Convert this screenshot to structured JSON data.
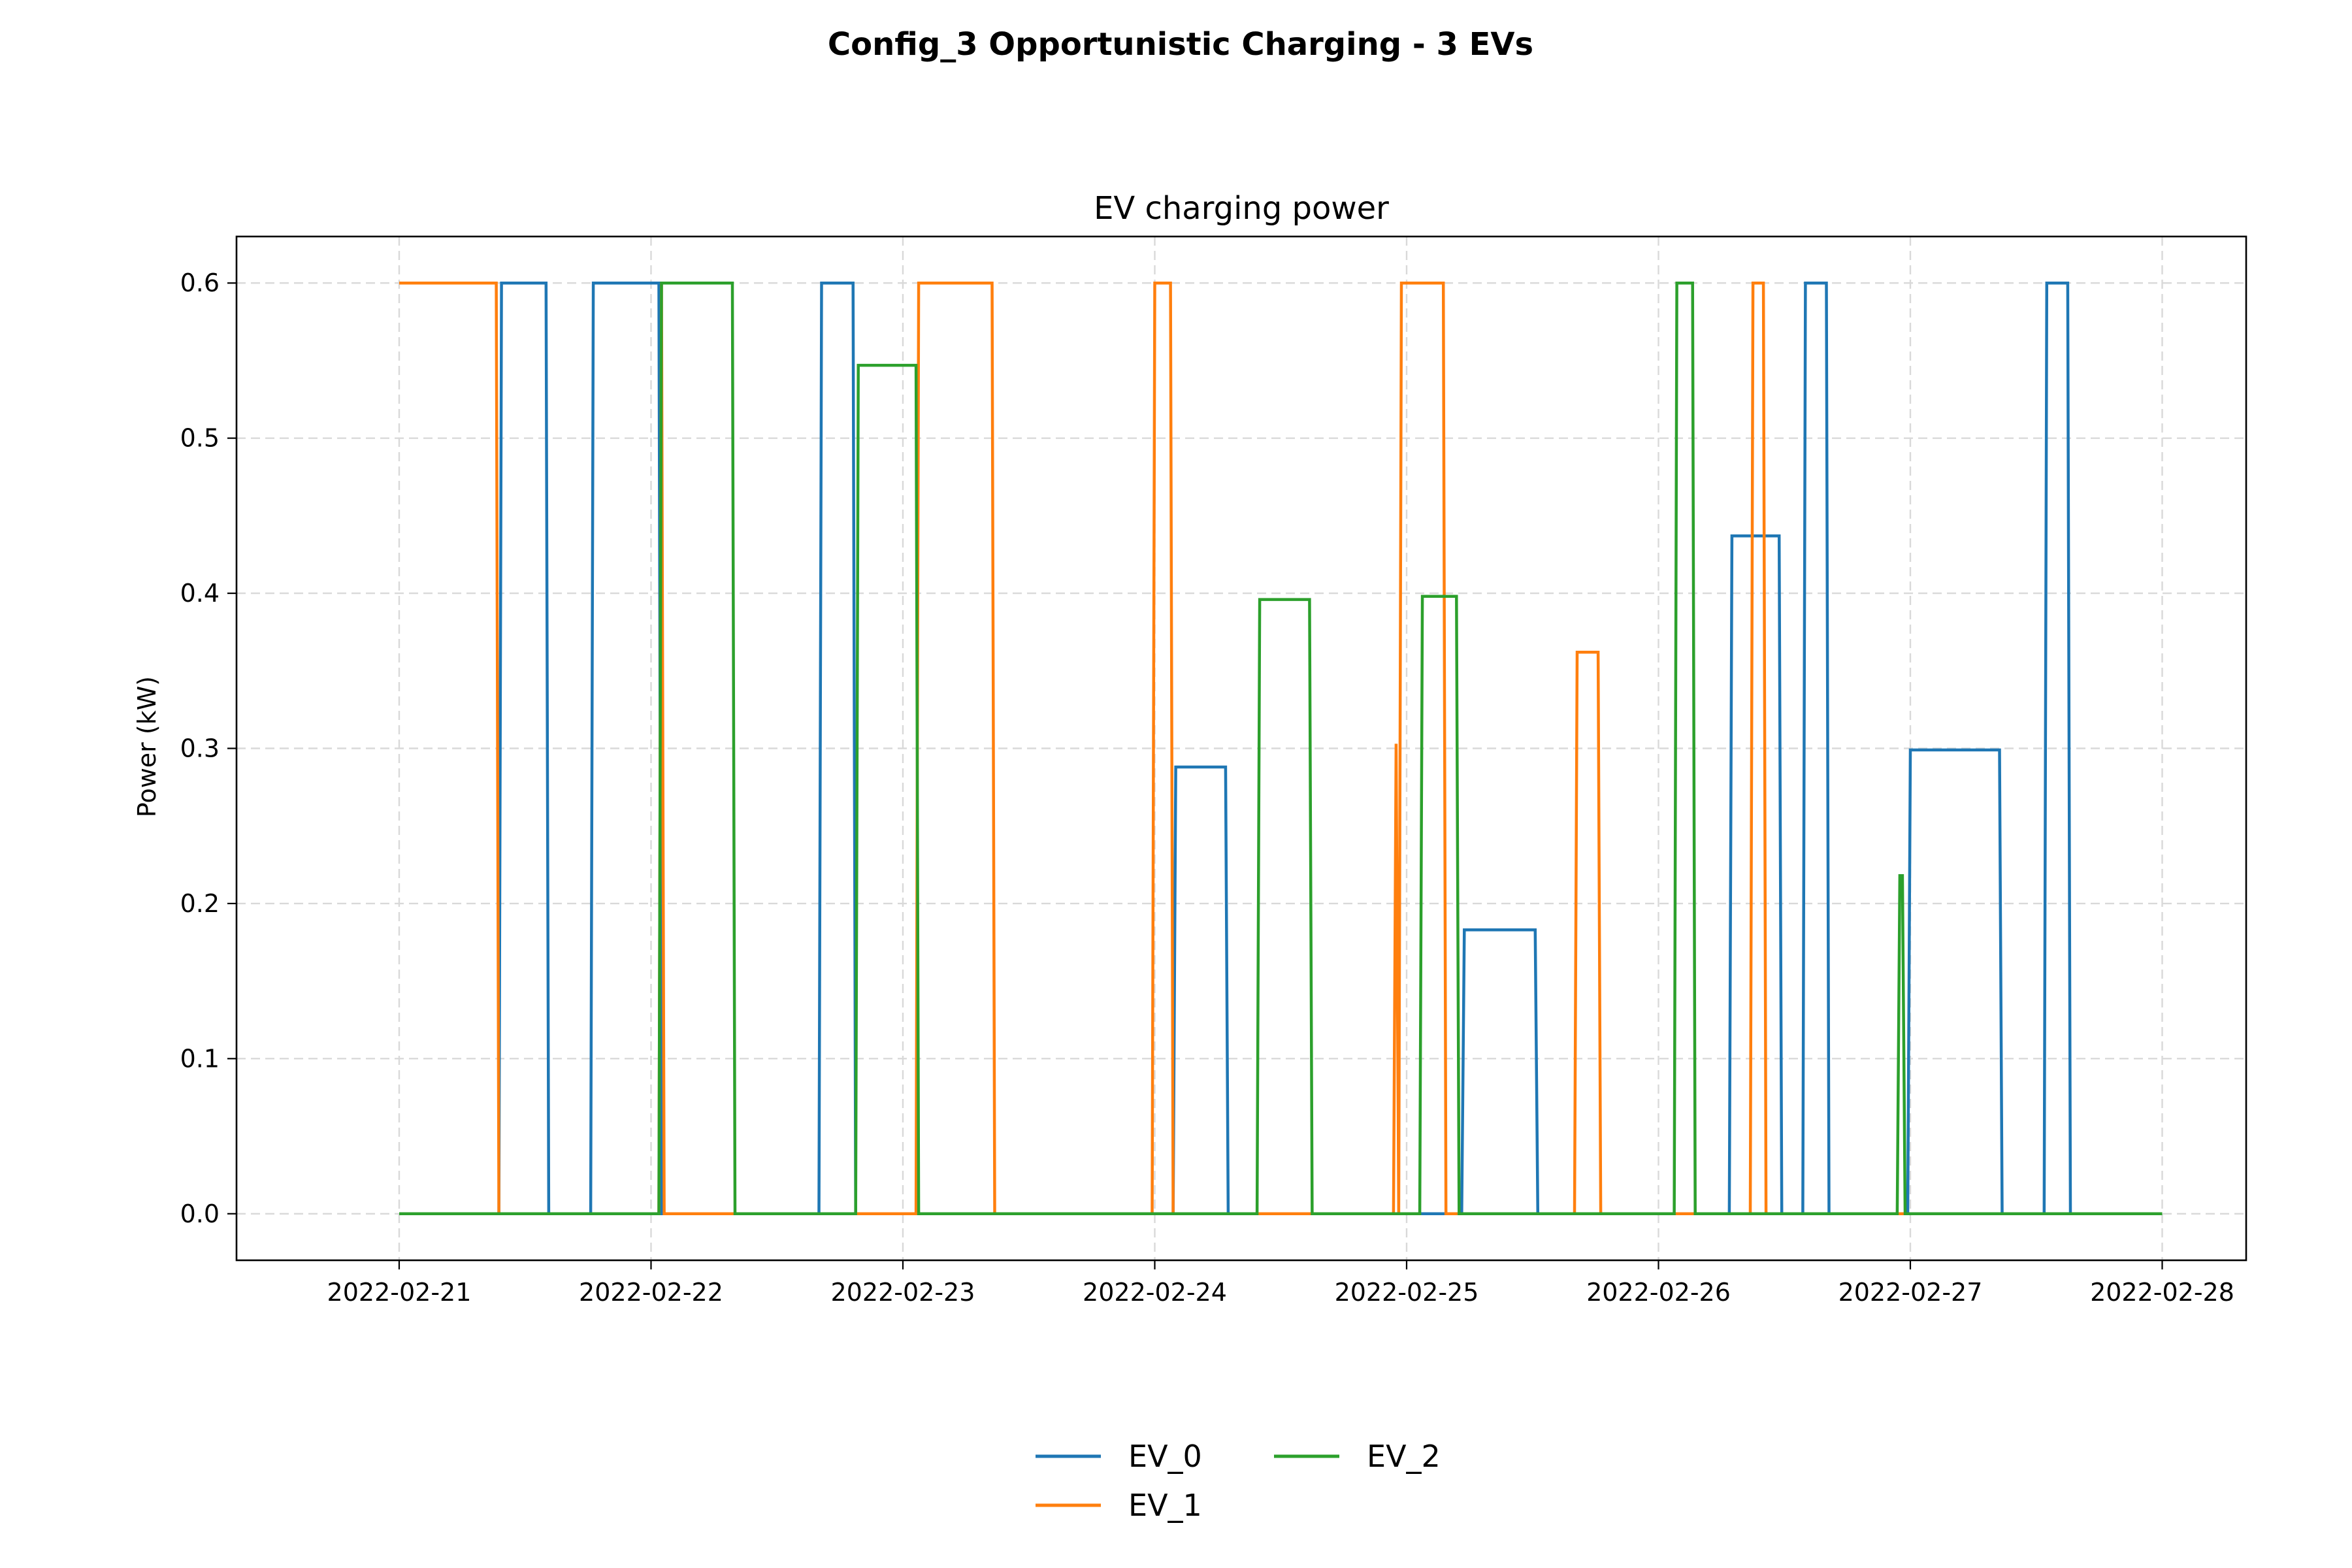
{
  "chart_data": {
    "type": "line",
    "suptitle": "Config_3 Opportunistic Charging - 3 EVs",
    "title": "EV charging power",
    "xlabel": "",
    "ylabel": "Power (kW)",
    "x_unit": "date",
    "x_range": [
      "2022-02-21 00:00",
      "2022-02-28 00:00"
    ],
    "xlim": [
      "2022-02-20 08:30",
      "2022-02-28 08:00"
    ],
    "ylim": [
      -0.03,
      0.63
    ],
    "x_ticks": [
      "2022-02-21",
      "2022-02-22",
      "2022-02-23",
      "2022-02-24",
      "2022-02-25",
      "2022-02-26",
      "2022-02-27",
      "2022-02-28"
    ],
    "y_ticks": [
      "0.0",
      "0.1",
      "0.2",
      "0.3",
      "0.4",
      "0.5",
      "0.6"
    ],
    "grid": true,
    "legend_position": "bottom-center",
    "series": [
      {
        "name": "EV_0",
        "color": "#1f77b4",
        "points": [
          [
            "2022-02-21 00:00",
            0
          ],
          [
            "2022-02-21 09:30",
            0
          ],
          [
            "2022-02-21 09:45",
            0.6
          ],
          [
            "2022-02-21 14:00",
            0.6
          ],
          [
            "2022-02-21 14:15",
            0
          ],
          [
            "2022-02-21 18:15",
            0
          ],
          [
            "2022-02-21 18:30",
            0.6
          ],
          [
            "2022-02-22 00:45",
            0.6
          ],
          [
            "2022-02-22 01:00",
            0
          ],
          [
            "2022-02-22 16:00",
            0
          ],
          [
            "2022-02-22 16:15",
            0.6
          ],
          [
            "2022-02-22 19:15",
            0.6
          ],
          [
            "2022-02-22 19:30",
            0
          ],
          [
            "2022-02-24 01:45",
            0
          ],
          [
            "2022-02-24 02:00",
            0.288
          ],
          [
            "2022-02-24 06:45",
            0.288
          ],
          [
            "2022-02-24 07:00",
            0
          ],
          [
            "2022-02-25 05:15",
            0
          ],
          [
            "2022-02-25 05:30",
            0.183
          ],
          [
            "2022-02-25 12:15",
            0.183
          ],
          [
            "2022-02-25 12:30",
            0
          ],
          [
            "2022-02-26 06:45",
            0
          ],
          [
            "2022-02-26 07:00",
            0.437
          ],
          [
            "2022-02-26 11:30",
            0.437
          ],
          [
            "2022-02-26 11:45",
            0
          ],
          [
            "2022-02-26 13:45",
            0
          ],
          [
            "2022-02-26 14:00",
            0.6
          ],
          [
            "2022-02-26 16:00",
            0.6
          ],
          [
            "2022-02-26 16:15",
            0
          ],
          [
            "2022-02-26 23:45",
            0
          ],
          [
            "2022-02-27 00:00",
            0.299
          ],
          [
            "2022-02-27 08:30",
            0.299
          ],
          [
            "2022-02-27 08:45",
            0
          ],
          [
            "2022-02-27 12:45",
            0
          ],
          [
            "2022-02-27 13:00",
            0.6
          ],
          [
            "2022-02-27 15:00",
            0.6
          ],
          [
            "2022-02-27 15:15",
            0
          ],
          [
            "2022-02-28 00:00",
            0
          ]
        ]
      },
      {
        "name": "EV_1",
        "color": "#ff7f0e",
        "points": [
          [
            "2022-02-21 00:00",
            0.6
          ],
          [
            "2022-02-21 09:15",
            0.6
          ],
          [
            "2022-02-21 09:30",
            0
          ],
          [
            "2022-02-22 00:45",
            0
          ],
          [
            "2022-02-22 01:00",
            0.6
          ],
          [
            "2022-02-22 01:15",
            0
          ],
          [
            "2022-02-23 01:15",
            0
          ],
          [
            "2022-02-23 01:30",
            0.6
          ],
          [
            "2022-02-23 08:30",
            0.6
          ],
          [
            "2022-02-23 08:45",
            0
          ],
          [
            "2022-02-23 23:45",
            0
          ],
          [
            "2022-02-24 00:00",
            0.6
          ],
          [
            "2022-02-24 01:30",
            0.6
          ],
          [
            "2022-02-24 01:45",
            0
          ],
          [
            "2022-02-24 22:45",
            0
          ],
          [
            "2022-02-24 23:00",
            0.303
          ],
          [
            "2022-02-24 23:15",
            0
          ],
          [
            "2022-02-24 23:30",
            0.6
          ],
          [
            "2022-02-25 03:30",
            0.6
          ],
          [
            "2022-02-25 03:45",
            0
          ],
          [
            "2022-02-25 16:00",
            0
          ],
          [
            "2022-02-25 16:15",
            0.362
          ],
          [
            "2022-02-25 18:15",
            0.362
          ],
          [
            "2022-02-25 18:30",
            0
          ],
          [
            "2022-02-26 08:45",
            0
          ],
          [
            "2022-02-26 09:00",
            0.6
          ],
          [
            "2022-02-26 10:00",
            0.6
          ],
          [
            "2022-02-26 10:15",
            0
          ],
          [
            "2022-02-28 00:00",
            0
          ]
        ]
      },
      {
        "name": "EV_2",
        "color": "#2ca02c",
        "points": [
          [
            "2022-02-21 00:00",
            0
          ],
          [
            "2022-02-22 00:45",
            0
          ],
          [
            "2022-02-22 01:00",
            0.6
          ],
          [
            "2022-02-22 07:45",
            0.6
          ],
          [
            "2022-02-22 08:00",
            0
          ],
          [
            "2022-02-22 19:30",
            0
          ],
          [
            "2022-02-22 19:45",
            0.547
          ],
          [
            "2022-02-23 01:15",
            0.547
          ],
          [
            "2022-02-23 01:30",
            0
          ],
          [
            "2022-02-24 09:45",
            0
          ],
          [
            "2022-02-24 10:00",
            0.396
          ],
          [
            "2022-02-24 14:45",
            0.396
          ],
          [
            "2022-02-24 15:00",
            0
          ],
          [
            "2022-02-25 01:15",
            0
          ],
          [
            "2022-02-25 01:30",
            0.398
          ],
          [
            "2022-02-25 04:45",
            0.398
          ],
          [
            "2022-02-25 05:00",
            0
          ],
          [
            "2022-02-26 01:30",
            0
          ],
          [
            "2022-02-26 01:45",
            0.6
          ],
          [
            "2022-02-26 03:15",
            0.6
          ],
          [
            "2022-02-26 03:30",
            0
          ],
          [
            "2022-02-26 22:45",
            0
          ],
          [
            "2022-02-26 23:00",
            0.218
          ],
          [
            "2022-02-26 23:15",
            0.218
          ],
          [
            "2022-02-26 23:30",
            0
          ],
          [
            "2022-02-28 00:00",
            0
          ]
        ]
      }
    ]
  }
}
